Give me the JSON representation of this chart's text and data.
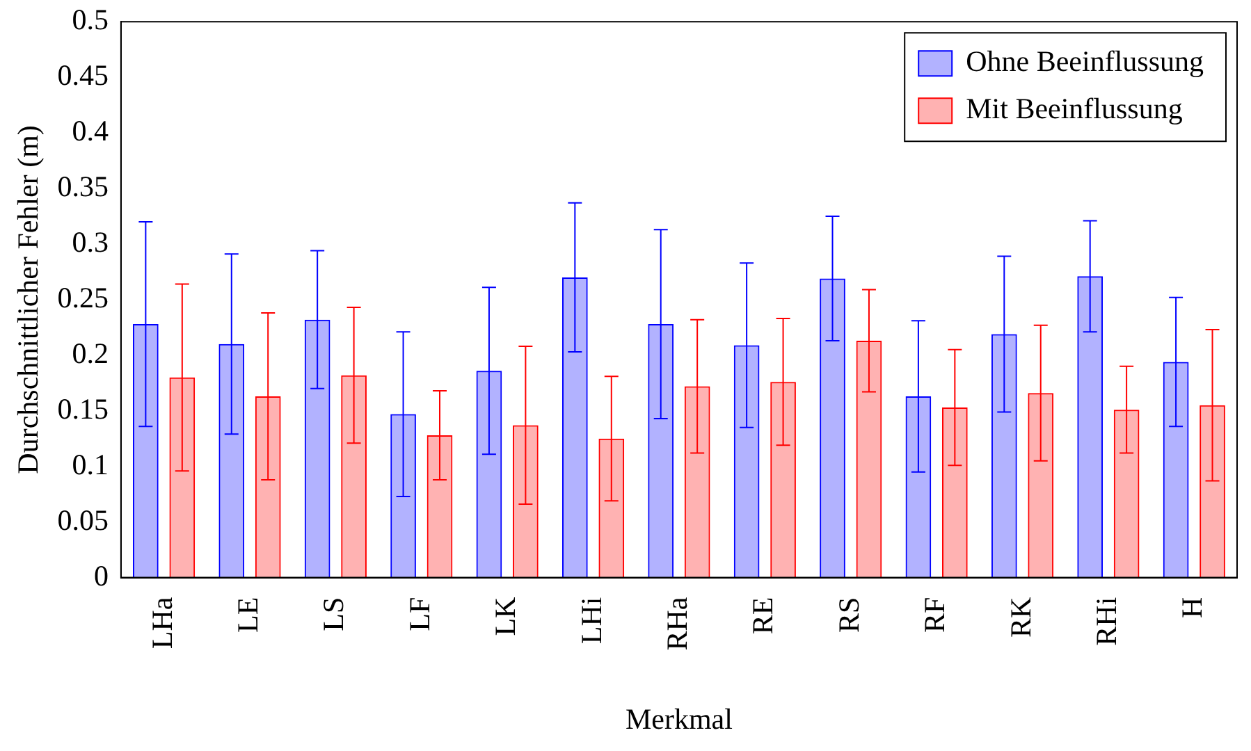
{
  "chart_data": {
    "type": "bar",
    "xlabel": "Merkmal",
    "ylabel": "Durchschnittlicher Fehler (m)",
    "categories": [
      "LHa",
      "LE",
      "LS",
      "LF",
      "LK",
      "LHi",
      "RHa",
      "RE",
      "RS",
      "RF",
      "RK",
      "RHi",
      "H"
    ],
    "series": [
      {
        "name": "Ohne Beeinflussung",
        "color": "#0000ff",
        "values": [
          0.228,
          0.21,
          0.232,
          0.147,
          0.186,
          0.27,
          0.228,
          0.209,
          0.269,
          0.163,
          0.219,
          0.271,
          0.194
        ],
        "errors": [
          0.092,
          0.081,
          0.062,
          0.074,
          0.075,
          0.067,
          0.085,
          0.074,
          0.056,
          0.068,
          0.07,
          0.05,
          0.058
        ]
      },
      {
        "name": "Mit Beeinflussung",
        "color": "#ff0000",
        "values": [
          0.18,
          0.163,
          0.182,
          0.128,
          0.137,
          0.125,
          0.172,
          0.176,
          0.213,
          0.153,
          0.166,
          0.151,
          0.155
        ],
        "errors": [
          0.084,
          0.075,
          0.061,
          0.04,
          0.071,
          0.056,
          0.06,
          0.057,
          0.046,
          0.052,
          0.061,
          0.039,
          0.068
        ]
      }
    ],
    "ylim": [
      0,
      0.5
    ],
    "yticks": [
      0,
      0.05,
      0.1,
      0.15,
      0.2,
      0.25,
      0.3,
      0.35,
      0.4,
      0.45,
      0.5
    ],
    "grid": false,
    "legend": "top right"
  }
}
